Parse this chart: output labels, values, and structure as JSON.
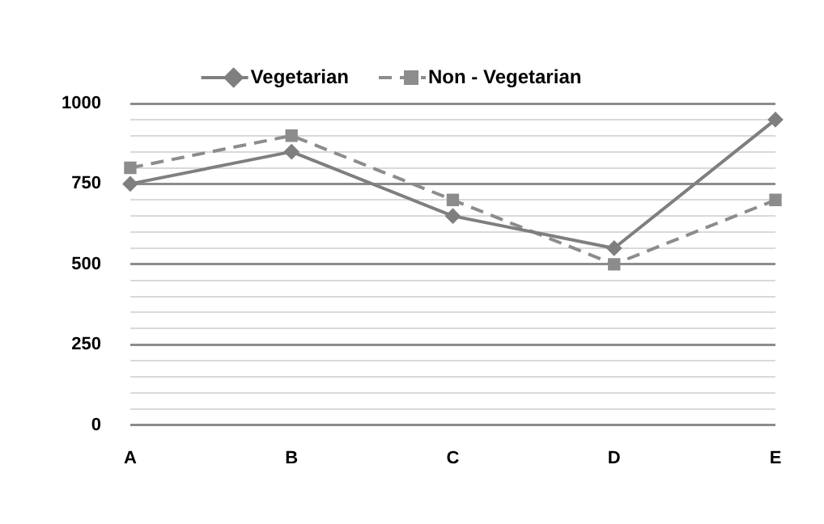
{
  "chart_data": {
    "type": "line",
    "categories": [
      "A",
      "B",
      "C",
      "D",
      "E"
    ],
    "series": [
      {
        "name": "Vegetarian",
        "color": "#7f7f7f",
        "values": [
          750,
          850,
          650,
          550,
          950
        ],
        "marker": "diamond",
        "line_style": "solid"
      },
      {
        "name": "Non - Vegetarian",
        "color": "#8c8c8c",
        "values": [
          800,
          900,
          700,
          500,
          700
        ],
        "marker": "square",
        "line_style": "dashed"
      }
    ],
    "ylim": [
      0,
      1000
    ],
    "yticks": [
      0,
      {
        "value": 50,
        "label": null
      },
      {
        "value": 100,
        "label": null
      },
      {
        "value": 150,
        "label": null
      },
      {
        "value": 200,
        "label": null
      },
      250,
      {
        "value": 300,
        "label": null
      },
      {
        "value": 350,
        "label": null
      },
      {
        "value": 400,
        "label": null
      },
      {
        "value": 450,
        "label": null
      },
      500,
      {
        "value": 550,
        "label": null
      },
      {
        "value": 600,
        "label": null
      },
      {
        "value": 650,
        "label": null
      },
      {
        "value": 700,
        "label": null
      },
      750,
      {
        "value": 800,
        "label": null
      },
      {
        "value": 850,
        "label": null
      },
      {
        "value": 900,
        "label": null
      },
      {
        "value": 950,
        "label": null
      },
      1000
    ],
    "grid": "y",
    "legend": "top"
  }
}
